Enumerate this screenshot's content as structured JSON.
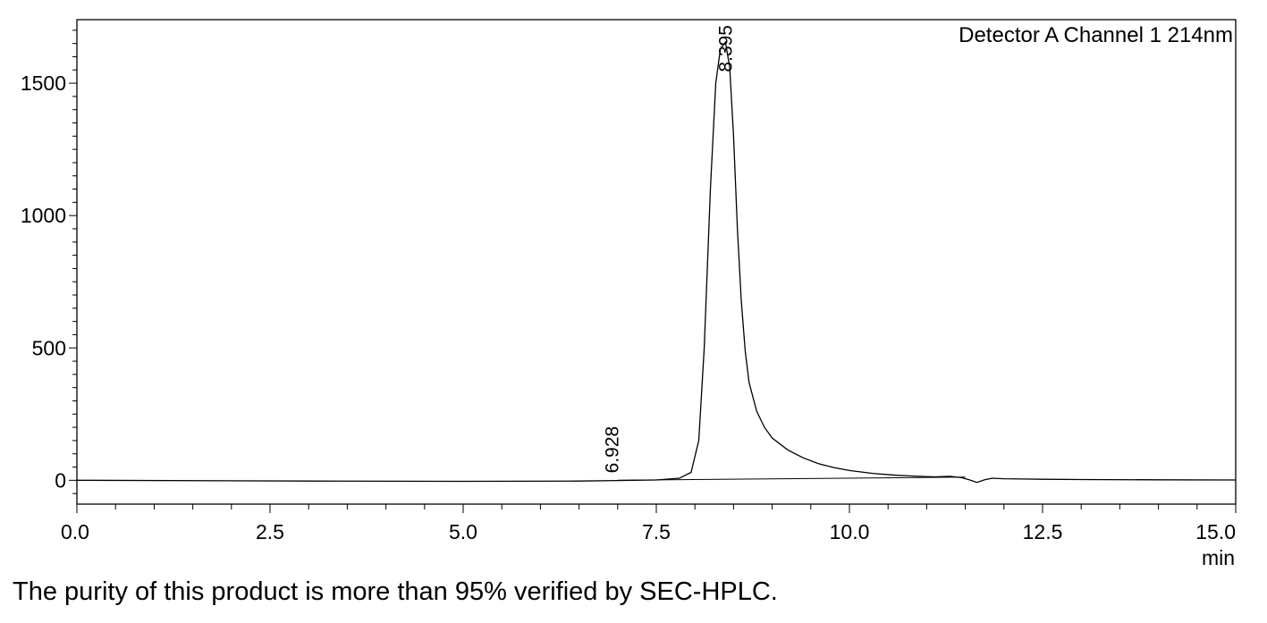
{
  "chart_data": {
    "type": "line",
    "title": "",
    "detector_label": "Detector A Channel 1 214nm",
    "xlabel": "min",
    "ylabel": "",
    "xlim": [
      0.0,
      15.0
    ],
    "ylim": [
      -90,
      1740
    ],
    "x_ticks": [
      0.0,
      2.5,
      5.0,
      7.5,
      10.0,
      12.5,
      15.0
    ],
    "x_tick_labels": [
      "0.0",
      "2.5",
      "5.0",
      "7.5",
      "10.0",
      "12.5",
      "15.0"
    ],
    "y_ticks": [
      0,
      500,
      1000,
      1500
    ],
    "y_tick_labels": [
      "0",
      "500",
      "1000",
      "1500"
    ],
    "grid": false,
    "series": [
      {
        "x": [
          0.0,
          3.0,
          5.0,
          6.5,
          7.0,
          7.5,
          7.8,
          7.95,
          8.05,
          8.12,
          8.2,
          8.27,
          8.33,
          8.395,
          8.45,
          8.5,
          8.55,
          8.6,
          8.65,
          8.7,
          8.8,
          8.9,
          9.0,
          9.2,
          9.4,
          9.6,
          9.8,
          10.0,
          10.3,
          10.6,
          10.9,
          11.1,
          11.3,
          11.45,
          11.55,
          11.65,
          11.75,
          11.85,
          12.0,
          12.5,
          13.0,
          14.0,
          15.0
        ],
        "y": [
          0,
          -3,
          -4,
          -3,
          -1,
          1,
          8,
          30,
          150,
          500,
          1100,
          1500,
          1630,
          1655,
          1560,
          1300,
          950,
          680,
          490,
          370,
          260,
          200,
          160,
          115,
          85,
          63,
          48,
          37,
          26,
          19,
          15,
          13,
          15,
          10,
          2,
          -8,
          2,
          8,
          6,
          4,
          3,
          2,
          1
        ]
      }
    ],
    "baseline": {
      "x": [
        7.0,
        11.5
      ],
      "y": [
        0,
        12
      ]
    },
    "peaks": [
      {
        "retention_time": 6.928,
        "label": "6.928"
      },
      {
        "retention_time": 8.395,
        "label": "8.395"
      }
    ]
  },
  "caption": "The purity of this product is more than 95% verified by SEC-HPLC."
}
